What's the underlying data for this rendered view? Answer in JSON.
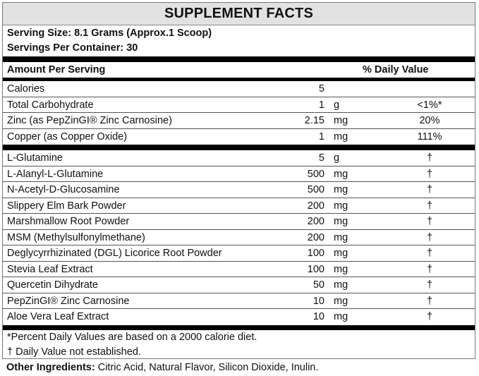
{
  "title": "SUPPLEMENT FACTS",
  "serving_size": "Serving Size: 8.1 Grams (Approx.1 Scoop)",
  "servings_per_container": "Servings Per Container: 30",
  "header": {
    "amount": "Amount Per Serving",
    "dv": "% Daily Value"
  },
  "nutrients": [
    {
      "name": "Calories",
      "amount": "5",
      "unit": "",
      "dv": ""
    },
    {
      "name": "Total Carbohydrate",
      "amount": "1",
      "unit": "g",
      "dv": "<1%*"
    },
    {
      "name": "Zinc (as PepZinGI® Zinc Carnosine)",
      "amount": "2.15",
      "unit": "mg",
      "dv": "20%"
    },
    {
      "name": "Copper (as Copper Oxide)",
      "amount": "1",
      "unit": "mg",
      "dv": "111%"
    }
  ],
  "ingredients": [
    {
      "name": "L-Glutamine",
      "amount": "5",
      "unit": "g",
      "dv": "†"
    },
    {
      "name": "L-Alanyl-L-Glutamine",
      "amount": "500",
      "unit": "mg",
      "dv": "†"
    },
    {
      "name": "N-Acetyl-D-Glucosamine",
      "amount": "500",
      "unit": "mg",
      "dv": "†"
    },
    {
      "name": "Slippery Elm Bark Powder",
      "amount": "200",
      "unit": "mg",
      "dv": "†"
    },
    {
      "name": "Marshmallow Root Powder",
      "amount": "200",
      "unit": "mg",
      "dv": "†"
    },
    {
      "name": "MSM (Methylsulfonylmethane)",
      "amount": "200",
      "unit": "mg",
      "dv": "†"
    },
    {
      "name": "Deglycyrrhizinated (DGL) Licorice Root Powder",
      "amount": "100",
      "unit": "mg",
      "dv": "†"
    },
    {
      "name": "Stevia Leaf Extract",
      "amount": "100",
      "unit": "mg",
      "dv": "†"
    },
    {
      "name": "Quercetin Dihydrate",
      "amount": "50",
      "unit": "mg",
      "dv": "†"
    },
    {
      "name": "PepZinGI® Zinc Carnosine",
      "amount": "10",
      "unit": "mg",
      "dv": "†"
    },
    {
      "name": "Aloe Vera Leaf Extract",
      "amount": "10",
      "unit": "mg",
      "dv": "†"
    }
  ],
  "footnotes": [
    "*Percent Daily Values are based on a 2000 calorie diet.",
    "† Daily Value not established."
  ],
  "other_ingredients": {
    "label": "Other Ingredients:",
    "text": " Citric Acid, Natural Flavor, Silicon Dioxide, Inulin."
  }
}
